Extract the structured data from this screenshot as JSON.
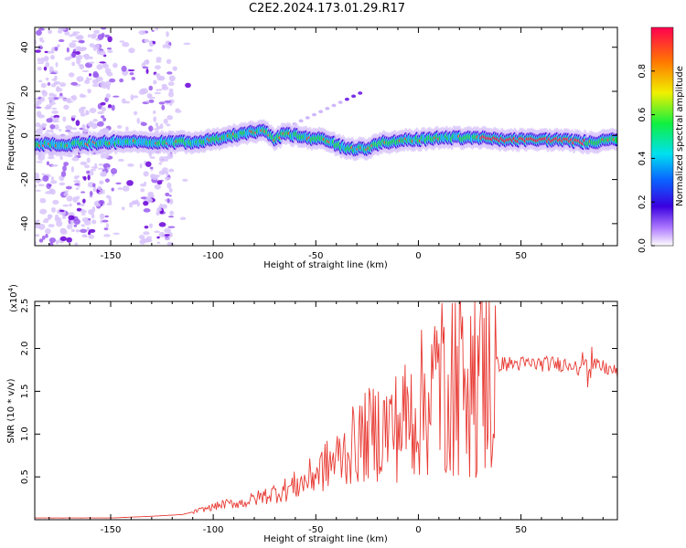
{
  "title": "C2E2.2024.173.01.29.R17",
  "chart_data": [
    {
      "type": "heatmap",
      "name": "spectrogram",
      "xlabel": "Height of straight line (km)",
      "ylabel": "Frequency (Hz)",
      "xlim": [
        -187,
        97
      ],
      "ylim": [
        -50,
        49
      ],
      "xticks": [
        -150,
        -100,
        -50,
        0,
        50
      ],
      "yticks": [
        -40,
        -20,
        0,
        20,
        40
      ],
      "colorbar": {
        "label": "Normalized spectral amplitude",
        "range": [
          0,
          1
        ],
        "ticks": [
          0.0,
          0.2,
          0.4,
          0.6,
          0.8
        ]
      },
      "ridge": {
        "x": [
          -185,
          -170,
          -150,
          -130,
          -110,
          -95,
          -85,
          -75,
          -70,
          -65,
          -55,
          -45,
          -35,
          -25,
          -18,
          -10,
          -5,
          0,
          10,
          20,
          30,
          40,
          50,
          60,
          70,
          80,
          85,
          95
        ],
        "y": [
          -4,
          -4,
          -3,
          -3,
          -3,
          -1,
          1,
          2,
          -2,
          1,
          -1,
          -2,
          -6,
          -6,
          -3,
          -3,
          -2,
          -2,
          -1,
          -1,
          -1,
          -2,
          -2,
          -2,
          -2,
          -3,
          -3,
          -2
        ]
      }
    },
    {
      "type": "line",
      "name": "snr",
      "xlabel": "Height of straight line (km)",
      "ylabel": "SNR (10 * v/v)",
      "y_multiplier_label": "(x10",
      "y_multiplier_exp": "4",
      "xlim": [
        -187,
        97
      ],
      "ylim": [
        0,
        2.55
      ],
      "xticks": [
        -150,
        -100,
        -50,
        0,
        50
      ],
      "yticks": [
        0.5,
        1.0,
        1.5,
        2.0,
        2.5
      ],
      "color": "#e83b34",
      "envelope": {
        "x": [
          -187,
          -150,
          -130,
          -115,
          -105,
          -95,
          -85,
          -75,
          -65,
          -55,
          -50,
          -40,
          -30,
          -20,
          -10,
          0,
          5,
          10,
          15,
          20,
          25,
          30,
          35,
          40,
          50,
          60,
          70,
          75,
          80,
          85,
          90,
          97
        ],
        "y": [
          0.02,
          0.02,
          0.04,
          0.06,
          0.12,
          0.18,
          0.2,
          0.28,
          0.35,
          0.45,
          0.55,
          0.7,
          0.9,
          1.05,
          1.1,
          1.3,
          1.45,
          1.6,
          1.7,
          1.75,
          1.75,
          1.78,
          1.8,
          1.82,
          1.82,
          1.82,
          1.82,
          1.82,
          1.85,
          1.8,
          1.78,
          1.72
        ]
      }
    }
  ]
}
